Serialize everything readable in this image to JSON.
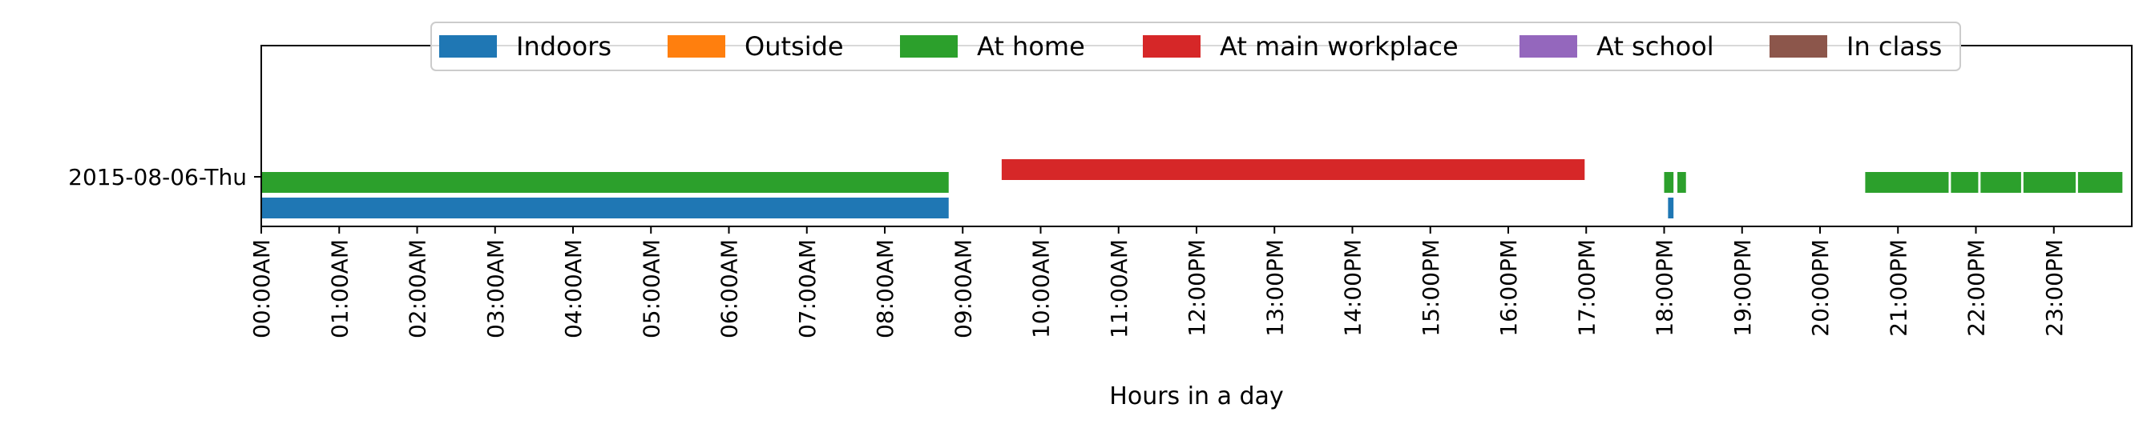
{
  "chart_data": {
    "type": "timeline",
    "xlabel": "Hours in a day",
    "ylabel": "",
    "xlim": [
      0,
      24
    ],
    "x_tick_labels": [
      "00:00AM",
      "01:00AM",
      "02:00AM",
      "03:00AM",
      "04:00AM",
      "05:00AM",
      "06:00AM",
      "07:00AM",
      "08:00AM",
      "09:00AM",
      "10:00AM",
      "11:00AM",
      "12:00PM",
      "13:00PM",
      "14:00PM",
      "15:00PM",
      "16:00PM",
      "17:00PM",
      "18:00PM",
      "19:00PM",
      "20:00PM",
      "21:00PM",
      "22:00PM",
      "23:00PM"
    ],
    "y_categories": [
      "2015-08-06-Thu"
    ],
    "legend_position": "top-center",
    "series": [
      {
        "name": "Indoors",
        "color": "#1f77b4",
        "intervals": [
          [
            0.0,
            8.82
          ],
          [
            18.05,
            18.12
          ]
        ]
      },
      {
        "name": "Outside",
        "color": "#ff7f0e",
        "intervals": []
      },
      {
        "name": "At home",
        "color": "#2ca02c",
        "intervals": [
          [
            0.0,
            8.82
          ],
          [
            18.0,
            18.12
          ],
          [
            18.17,
            18.28
          ],
          [
            20.58,
            21.65
          ],
          [
            21.68,
            22.03
          ],
          [
            22.06,
            22.58
          ],
          [
            22.61,
            23.28
          ],
          [
            23.31,
            23.88
          ]
        ]
      },
      {
        "name": "At main workplace",
        "color": "#d62728",
        "intervals": [
          [
            9.5,
            16.98
          ]
        ]
      },
      {
        "name": "At school",
        "color": "#9467bd",
        "intervals": []
      },
      {
        "name": "In class",
        "color": "#8c564b",
        "intervals": []
      }
    ]
  }
}
